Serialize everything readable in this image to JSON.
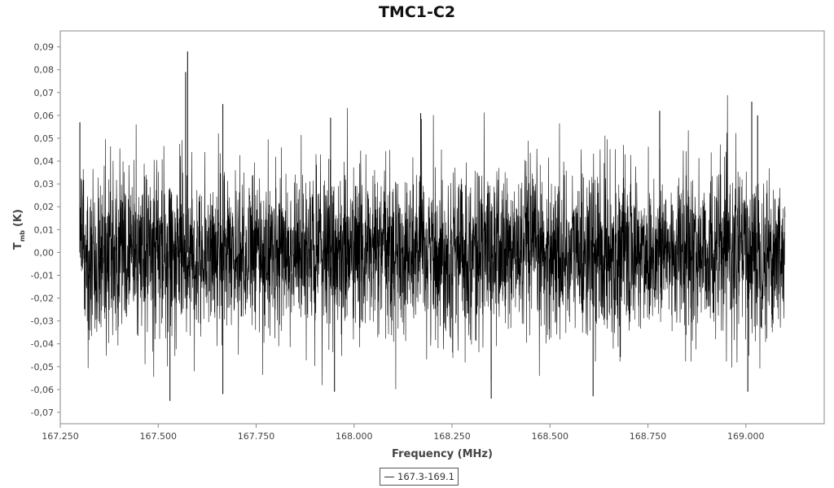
{
  "chart_data": {
    "type": "line",
    "title": "TMC1-C2",
    "xlabel": "Frequency (MHz)",
    "ylabel_main": "T",
    "ylabel_sub": "mb",
    "ylabel_unit": "(K)",
    "xlim": [
      167.25,
      169.2
    ],
    "ylim": [
      -0.075,
      0.097
    ],
    "x_ticks": [
      167.25,
      167.5,
      167.75,
      168.0,
      168.25,
      168.5,
      168.75,
      169.0
    ],
    "x_tick_labels": [
      "167.250",
      "167.500",
      "167.750",
      "168.000",
      "168.250",
      "168.500",
      "168.750",
      "169.000"
    ],
    "y_ticks": [
      0.09,
      0.08,
      0.07,
      0.06,
      0.05,
      0.04,
      0.03,
      0.02,
      0.01,
      0.0,
      -0.01,
      -0.02,
      -0.03,
      -0.04,
      -0.05,
      -0.06,
      -0.07
    ],
    "y_tick_labels": [
      "0,09",
      "0,08",
      "0,07",
      "0,06",
      "0,05",
      "0,04",
      "0,03",
      "0,02",
      "0,01",
      "0,00",
      "-0,01",
      "-0,02",
      "-0,03",
      "-0,04",
      "-0,05",
      "-0,06",
      "-0,07"
    ],
    "grid": false,
    "legend_position": "bottom-center",
    "series": [
      {
        "name": "167.3-169.1",
        "color": "#000000",
        "x_range": [
          167.3,
          169.1
        ],
        "description_noise_rms": 0.018,
        "peaks": [
          {
            "x": 167.3,
            "y": 0.057
          },
          {
            "x": 167.575,
            "y": 0.088
          },
          {
            "x": 167.57,
            "y": 0.079
          },
          {
            "x": 167.665,
            "y": 0.065
          },
          {
            "x": 167.94,
            "y": 0.059
          },
          {
            "x": 168.17,
            "y": 0.061
          },
          {
            "x": 168.78,
            "y": 0.062
          },
          {
            "x": 169.015,
            "y": 0.066
          },
          {
            "x": 169.03,
            "y": 0.06
          },
          {
            "x": 167.53,
            "y": -0.065
          },
          {
            "x": 168.35,
            "y": -0.064
          },
          {
            "x": 168.61,
            "y": -0.063
          },
          {
            "x": 169.005,
            "y": -0.061
          },
          {
            "x": 167.665,
            "y": -0.062
          },
          {
            "x": 167.95,
            "y": -0.061
          }
        ]
      }
    ]
  }
}
